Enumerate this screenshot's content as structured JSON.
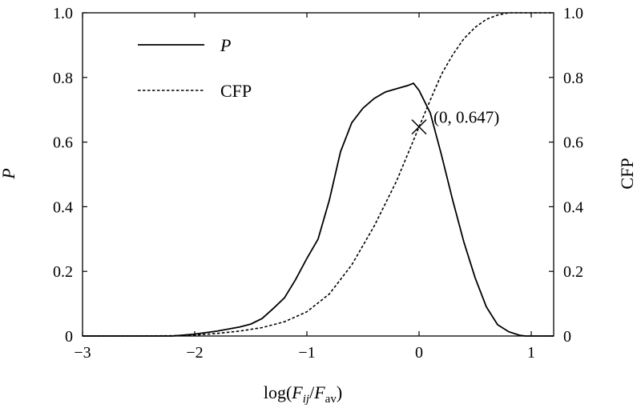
{
  "chart_data": {
    "type": "line",
    "xlim": [
      -3,
      1.2
    ],
    "ylim_left": [
      0,
      1.0
    ],
    "ylim_right": [
      0,
      1.0
    ],
    "x_ticks": [
      -3,
      -2,
      -1,
      0,
      1
    ],
    "x_tick_labels": [
      "−3",
      "−2",
      "−1",
      "0",
      "1"
    ],
    "y_ticks": [
      0,
      0.2,
      0.4,
      0.6,
      0.8,
      1.0
    ],
    "y_tick_labels": [
      "0",
      "0.2",
      "0.4",
      "0.6",
      "0.8",
      "1.0"
    ],
    "xlabel": {
      "prefix": "log(",
      "v1": "F",
      "s1": "ij",
      "sep": "/",
      "v2": "F",
      "s2": "av",
      "suffix": ")"
    },
    "ylabel_left": "P",
    "ylabel_right": "CFP",
    "grid": false,
    "legend_placement": "top-left",
    "series": [
      {
        "name": "P",
        "style": "solid",
        "color": "#000000",
        "x": [
          -3.0,
          -2.5,
          -2.2,
          -2.0,
          -1.8,
          -1.6,
          -1.5,
          -1.4,
          -1.3,
          -1.2,
          -1.1,
          -1.0,
          -0.9,
          -0.8,
          -0.7,
          -0.6,
          -0.5,
          -0.4,
          -0.3,
          -0.2,
          -0.1,
          -0.05,
          0.0,
          0.1,
          0.2,
          0.3,
          0.4,
          0.5,
          0.6,
          0.7,
          0.8,
          0.9,
          0.95,
          1.0,
          1.2
        ],
        "y": [
          0.0,
          0.0,
          0.0,
          0.006,
          0.015,
          0.028,
          0.037,
          0.054,
          0.085,
          0.118,
          0.175,
          0.24,
          0.3,
          0.42,
          0.57,
          0.66,
          0.705,
          0.735,
          0.755,
          0.765,
          0.775,
          0.782,
          0.76,
          0.69,
          0.56,
          0.42,
          0.29,
          0.18,
          0.09,
          0.035,
          0.013,
          0.002,
          0.0,
          0.0,
          0.0
        ]
      },
      {
        "name": "CFP",
        "style": "dashed",
        "color": "#000000",
        "x": [
          -3.0,
          -2.5,
          -2.2,
          -2.0,
          -1.8,
          -1.6,
          -1.4,
          -1.2,
          -1.0,
          -0.8,
          -0.6,
          -0.4,
          -0.2,
          0.0,
          0.1,
          0.2,
          0.3,
          0.4,
          0.5,
          0.6,
          0.7,
          0.8,
          1.0,
          1.2
        ],
        "y": [
          0.0,
          0.0,
          0.001,
          0.003,
          0.008,
          0.015,
          0.026,
          0.044,
          0.075,
          0.13,
          0.22,
          0.34,
          0.48,
          0.647,
          0.73,
          0.81,
          0.87,
          0.92,
          0.955,
          0.98,
          0.993,
          1.0,
          1.0,
          1.0
        ]
      }
    ],
    "annotations": [
      {
        "marker": "x",
        "x": 0,
        "y": 0.647,
        "text": "(0, 0.647)"
      }
    ]
  }
}
